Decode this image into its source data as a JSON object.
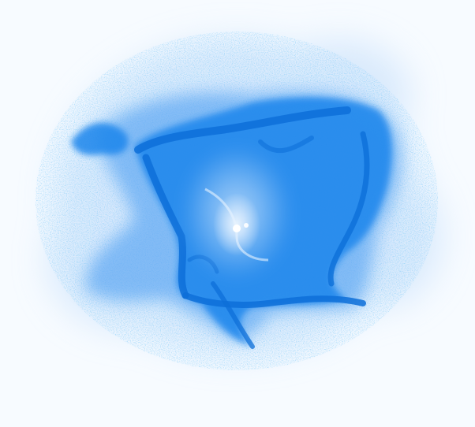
{
  "image": {
    "subject": "nebula",
    "palette": {
      "background": "#f7fbff",
      "haze": "#cfe4fb",
      "glow": "#5fa8f3",
      "body": "#1f86ec",
      "filament": "#0d6fd8",
      "core_light": "#e8f3ff",
      "core_star": "#ffffff"
    }
  }
}
